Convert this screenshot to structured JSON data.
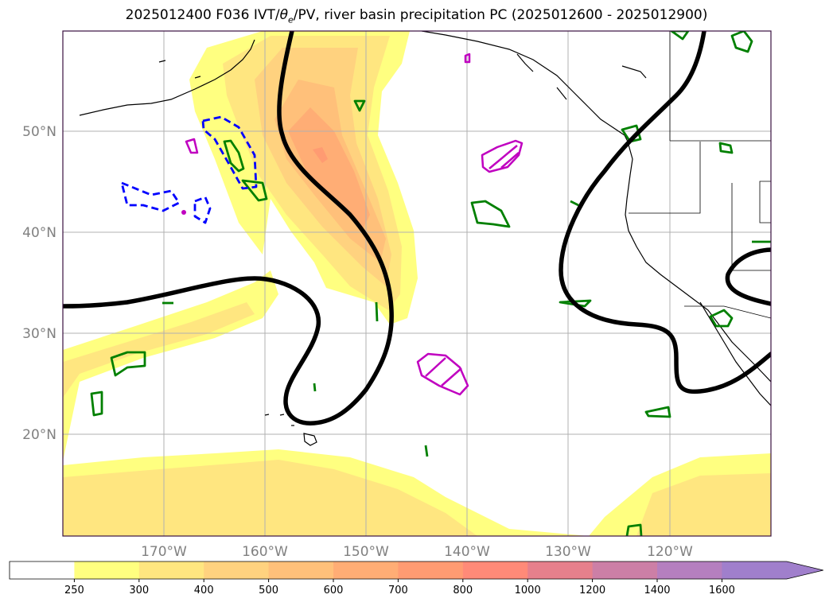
{
  "title_pre": "2025012400 F036 IVT/",
  "title_theta": "θ",
  "title_sub": "e",
  "title_post": "/PV, river basin precipitation PC (2025012600 - 2025012900)",
  "lat_labels": [
    "50°N",
    "40°N",
    "30°N",
    "20°N"
  ],
  "lon_labels": [
    "170°W",
    "160°W",
    "150°W",
    "140°W",
    "130°W",
    "120°W"
  ],
  "colorbar": {
    "ticks": [
      "250",
      "300",
      "400",
      "500",
      "600",
      "700",
      "800",
      "1000",
      "1200",
      "1400",
      "1600"
    ],
    "colors": [
      "#ffffff",
      "#ffff80",
      "#ffe680",
      "#ffd27f",
      "#ffc07a",
      "#ffad75",
      "#ff9b72",
      "#ff8a78",
      "#e6808c",
      "#cc7fa6",
      "#b57fbf",
      "#a07fcc"
    ],
    "extend": "max"
  },
  "colors": {
    "thick_contour": "#000000",
    "pos_pv": "#008000",
    "neg_pv": "#0000ff",
    "precip_pc": "#c000c0",
    "coast": "#000000",
    "grid": "#b0b0b0",
    "frame": "#3a1040"
  }
}
